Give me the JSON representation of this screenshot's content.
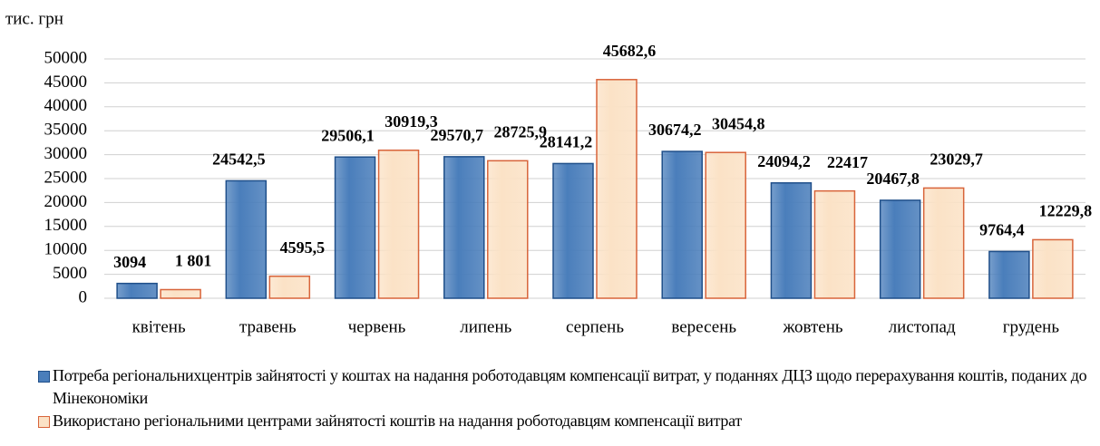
{
  "chart_data": {
    "type": "bar",
    "y_axis_label": "тис. грн",
    "categories": [
      "квітень",
      "травень",
      "червень",
      "липень",
      "серпень",
      "вересень",
      "жовтень",
      "листопад",
      "грудень"
    ],
    "series": [
      {
        "name": "Потреба регіональнихцентрів зайнятості у коштах на надання роботодавцям компенсації витрат, у поданнях ДЦЗ щодо перерахування коштів, поданих до Мінекономіки",
        "color": "#4a7ebb",
        "values": [
          3094,
          24542.5,
          29506.1,
          29570.7,
          28141.2,
          30674.2,
          24094.2,
          20467.8,
          9764.4
        ],
        "value_labels": [
          "3094",
          "24542,5",
          "29506,1",
          "29570,7",
          "28141,2",
          "30674,2",
          "24094,2",
          "20467,8",
          "9764,4"
        ]
      },
      {
        "name": "Використано регіональними центрами зайнятості коштів на надання роботодавцям  компенсації витрат",
        "color": "#fbe2c6",
        "values": [
          1801,
          4595.5,
          30919.3,
          28725.9,
          45682.6,
          30454.8,
          22417,
          23029.7,
          12229.8
        ],
        "value_labels": [
          "1 801",
          "4595,5",
          "30919,3",
          "28725,9",
          "45682,6",
          "30454,8",
          "22417",
          "23029,7",
          "12229,8"
        ]
      }
    ],
    "ylim": [
      0,
      50000
    ],
    "yticks": [
      0,
      5000,
      10000,
      15000,
      20000,
      25000,
      30000,
      35000,
      40000,
      45000,
      50000
    ],
    "grid": true
  }
}
